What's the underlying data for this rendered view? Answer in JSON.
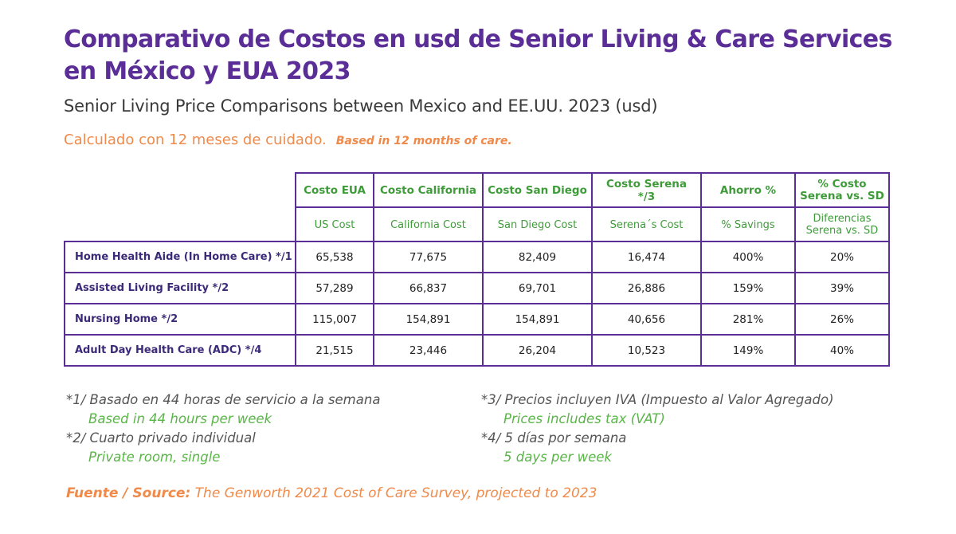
{
  "header": {
    "title": "Comparativo de Costos en usd de Senior Living & Care Services en México y EUA 2023",
    "subtitle": "Senior Living Price Comparisons between Mexico and EE.UU. 2023 (usd)",
    "calc_es": "Calculado con 12 meses de cuidado.",
    "calc_en": "Based in 12 months of care."
  },
  "table": {
    "columns_es": [
      "Costo EUA",
      "Costo California",
      "Costo San Diego",
      "Costo Serena *∕3",
      "Ahorro %",
      "% Costo Serena vs. SD"
    ],
    "columns_en": [
      "US Cost",
      "California Cost",
      "San Diego Cost",
      "Serena´s Cost",
      "% Savings",
      "Diferencias Serena vs. SD"
    ],
    "rows": [
      {
        "label": "Home Health Aide (In Home Care) *∕1",
        "values": [
          "65,538",
          "77,675",
          "82,409",
          "16,474",
          "400%",
          "20%"
        ]
      },
      {
        "label": "Assisted Living Facility *∕2",
        "values": [
          "57,289",
          "66,837",
          "69,701",
          "26,886",
          "159%",
          "39%"
        ]
      },
      {
        "label": "Nursing Home  *∕2",
        "values": [
          "115,007",
          "154,891",
          "154,891",
          "40,656",
          "281%",
          "26%"
        ]
      },
      {
        "label": "Adult Day Health Care (ADC) *∕4",
        "values": [
          "21,515",
          "23,446",
          "26,204",
          "10,523",
          "149%",
          "40%"
        ]
      }
    ]
  },
  "notes": {
    "left": [
      {
        "es": "*1∕ Basado en 44 horas de servicio a la semana",
        "en": "Based in 44 hours per week"
      },
      {
        "es": "*2∕ Cuarto privado individual",
        "en": "Private room, single"
      }
    ],
    "right": [
      {
        "es": "*3∕ Precios incluyen IVA (Impuesto al Valor Agregado)",
        "en": "Prices includes tax (VAT)"
      },
      {
        "es": "*4∕ 5 días por semana",
        "en": "5 days per week"
      }
    ]
  },
  "source": {
    "label": "Fuente / Source:",
    "text": "The Genworth 2021 Cost of Care Survey, projected to 2023"
  },
  "colors": {
    "purple": "#5b2d96",
    "green": "#3f9b3a",
    "orange": "#ef8a4a",
    "row_label": "#3b2a78"
  }
}
